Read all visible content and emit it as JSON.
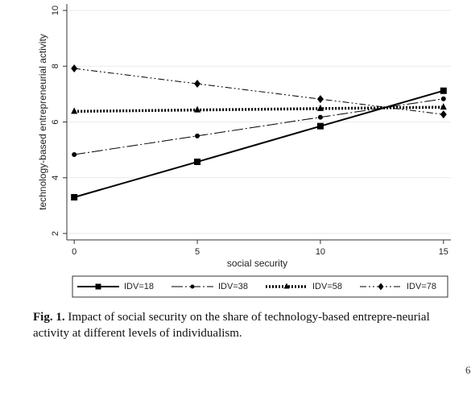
{
  "chart_data": {
    "type": "line",
    "x": [
      0,
      5,
      10,
      15
    ],
    "xlabel": "social security",
    "ylabel": "technology-based entrepreneurial activity",
    "xlim": [
      -0.3,
      15.3
    ],
    "xticks": [
      0,
      5,
      10,
      15
    ],
    "ylim": [
      1.77,
      10.23
    ],
    "yticks": [
      2,
      4,
      6,
      8,
      10
    ],
    "grid": true,
    "legend": "bottom",
    "series": [
      {
        "name": "IDV=18",
        "color": "#000000",
        "dash": "none",
        "width": 2,
        "marker": "square",
        "values": [
          3.3,
          4.57,
          5.85,
          7.12
        ]
      },
      {
        "name": "IDV=38",
        "color": "#000000",
        "dash": "14 3 2 3",
        "width": 1,
        "marker": "circle",
        "values": [
          4.83,
          5.5,
          6.17,
          6.83
        ]
      },
      {
        "name": "IDV=58",
        "color": "#000000",
        "dash": "2 2",
        "width": 3.5,
        "marker": "triangle",
        "values": [
          6.38,
          6.43,
          6.48,
          6.53
        ]
      },
      {
        "name": "IDV=78",
        "color": "#000000",
        "dash": "8 3 2 3 2 3",
        "width": 1,
        "marker": "diamond",
        "values": [
          7.92,
          7.37,
          6.82,
          6.27
        ]
      }
    ]
  },
  "caption": {
    "label": "Fig. 1.",
    "text": "Impact of social security on the share of technology-based entrepre-neurial activity at different levels of individualism."
  },
  "page_fragment": "6"
}
